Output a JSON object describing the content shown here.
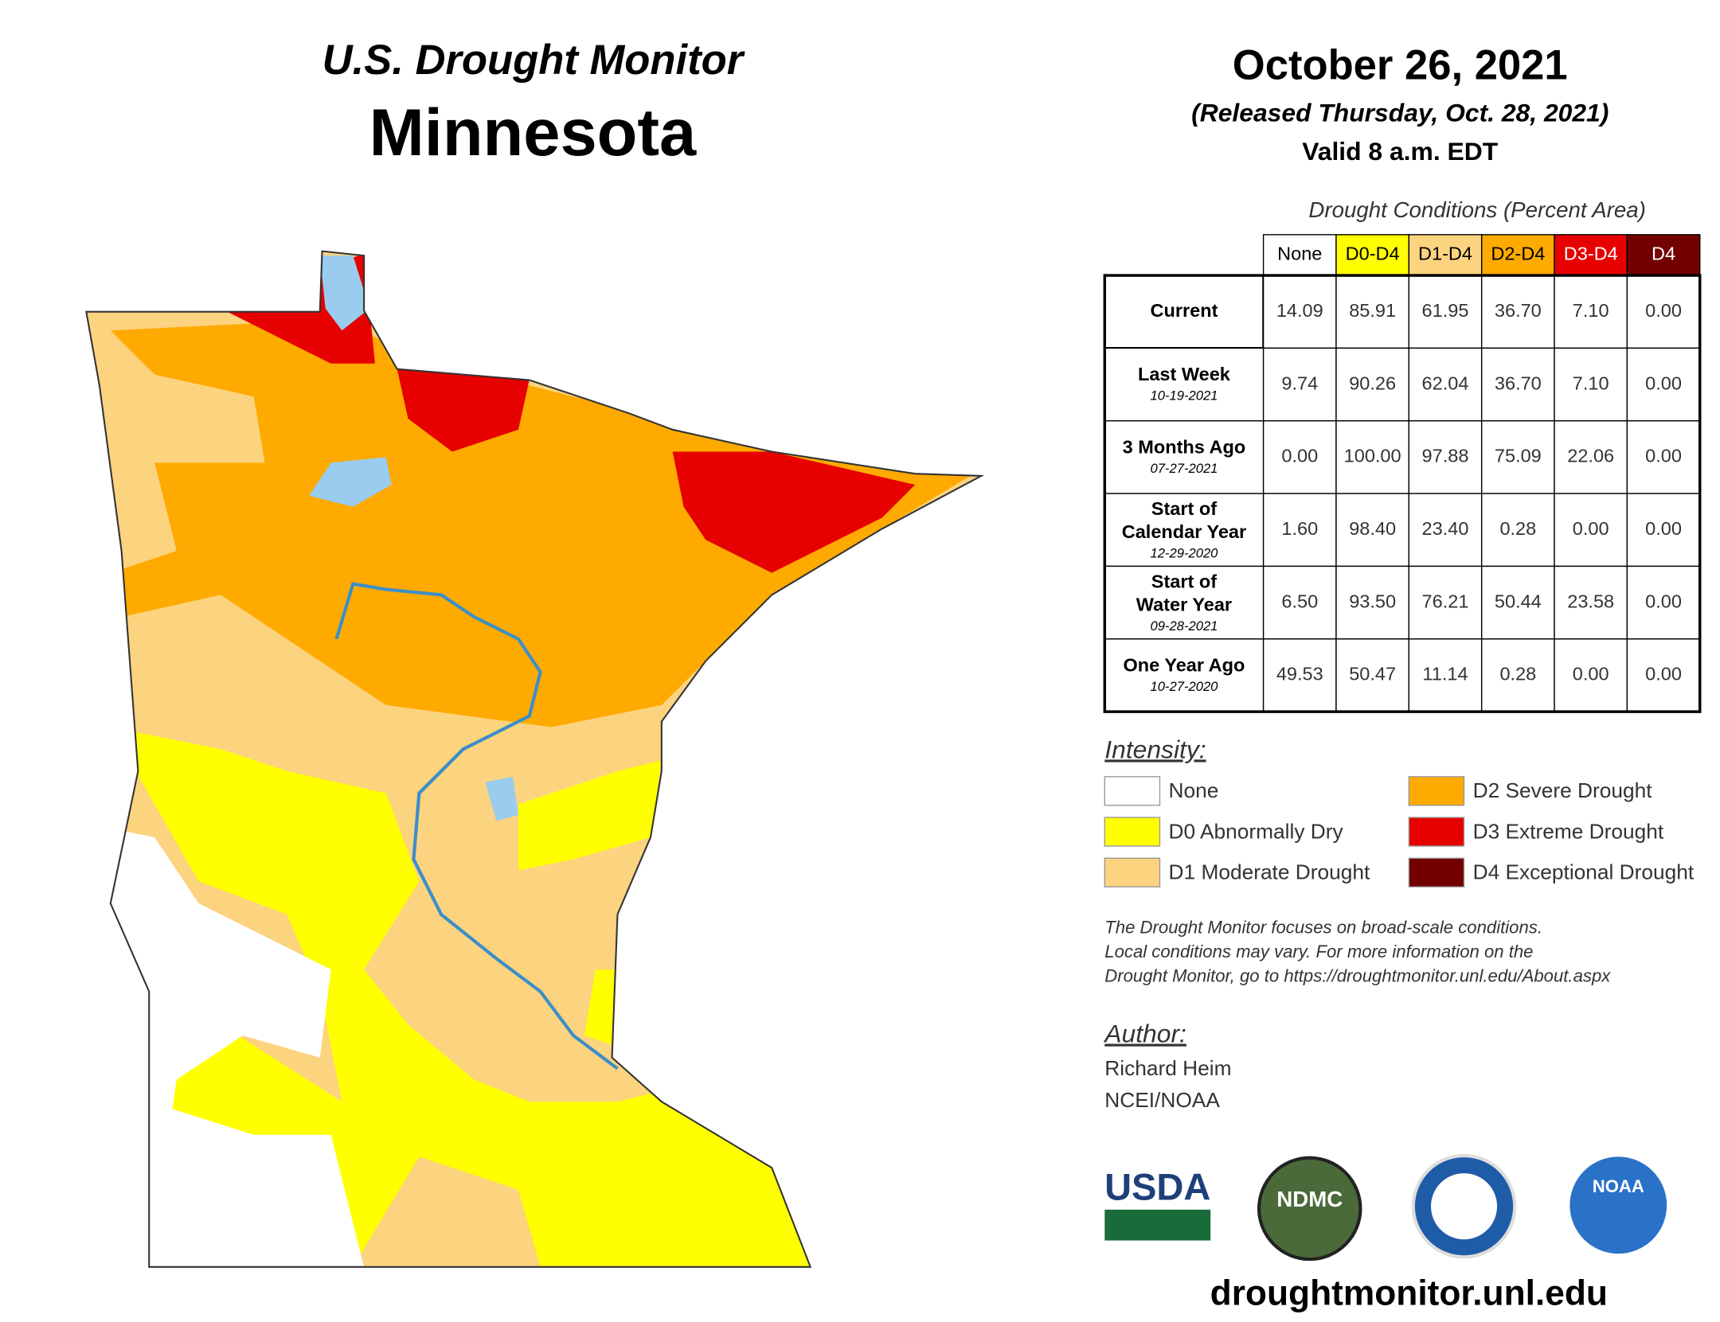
{
  "header": {
    "title": "U.S. Drought Monitor",
    "state": "Minnesota",
    "date": "October 26, 2021",
    "released": "(Released Thursday, Oct. 28, 2021)",
    "valid": "Valid 8 a.m. EDT"
  },
  "table": {
    "caption": "Drought Conditions (Percent Area)",
    "columns": [
      {
        "label": "None",
        "color": "#ffffff",
        "text": "#000000"
      },
      {
        "label": "D0-D4",
        "color": "#ffff00",
        "text": "#000000"
      },
      {
        "label": "D1-D4",
        "color": "#fcd37f",
        "text": "#000000"
      },
      {
        "label": "D2-D4",
        "color": "#ffaa00",
        "text": "#000000"
      },
      {
        "label": "D3-D4",
        "color": "#e60000",
        "text": "#ffffff"
      },
      {
        "label": "D4",
        "color": "#730000",
        "text": "#ffffff"
      }
    ],
    "rows": [
      {
        "label": [
          "Current"
        ],
        "values": [
          "14.09",
          "85.91",
          "61.95",
          "36.70",
          "7.10",
          "0.00"
        ]
      },
      {
        "label": [
          "Last Week"
        ],
        "date": "10-19-2021",
        "values": [
          "9.74",
          "90.26",
          "62.04",
          "36.70",
          "7.10",
          "0.00"
        ]
      },
      {
        "label": [
          "3 Months Ago"
        ],
        "date": "07-27-2021",
        "values": [
          "0.00",
          "100.00",
          "97.88",
          "75.09",
          "22.06",
          "0.00"
        ]
      },
      {
        "label": [
          "Start of",
          "Calendar Year"
        ],
        "date": "12-29-2020",
        "values": [
          "1.60",
          "98.40",
          "23.40",
          "0.28",
          "0.00",
          "0.00"
        ]
      },
      {
        "label": [
          "Start of",
          "Water Year"
        ],
        "date": "09-28-2021",
        "values": [
          "6.50",
          "93.50",
          "76.21",
          "50.44",
          "23.58",
          "0.00"
        ]
      },
      {
        "label": [
          "One Year Ago"
        ],
        "date": "10-27-2020",
        "values": [
          "49.53",
          "50.47",
          "11.14",
          "0.28",
          "0.00",
          "0.00"
        ]
      }
    ]
  },
  "legend": {
    "title": "Intensity:",
    "items": [
      {
        "label": "None",
        "color": "#ffffff"
      },
      {
        "label": "D0 Abnormally Dry",
        "color": "#ffff00"
      },
      {
        "label": "D1 Moderate Drought",
        "color": "#fcd37f"
      },
      {
        "label": "D2 Severe Drought",
        "color": "#ffaa00"
      },
      {
        "label": "D3 Extreme Drought",
        "color": "#e60000"
      },
      {
        "label": "D4 Exceptional Drought",
        "color": "#730000"
      }
    ]
  },
  "note": [
    "The Drought Monitor focuses on broad-scale conditions.",
    "Local conditions may vary. For more information on the",
    "Drought Monitor, go to https://droughtmonitor.unl.edu/About.aspx"
  ],
  "author": {
    "title": "Author:",
    "name": "Richard Heim",
    "org": "NCEI/NOAA"
  },
  "logos": [
    "USDA",
    "NDMC",
    "NOAA"
  ],
  "url": "droughtmonitor.unl.edu"
}
